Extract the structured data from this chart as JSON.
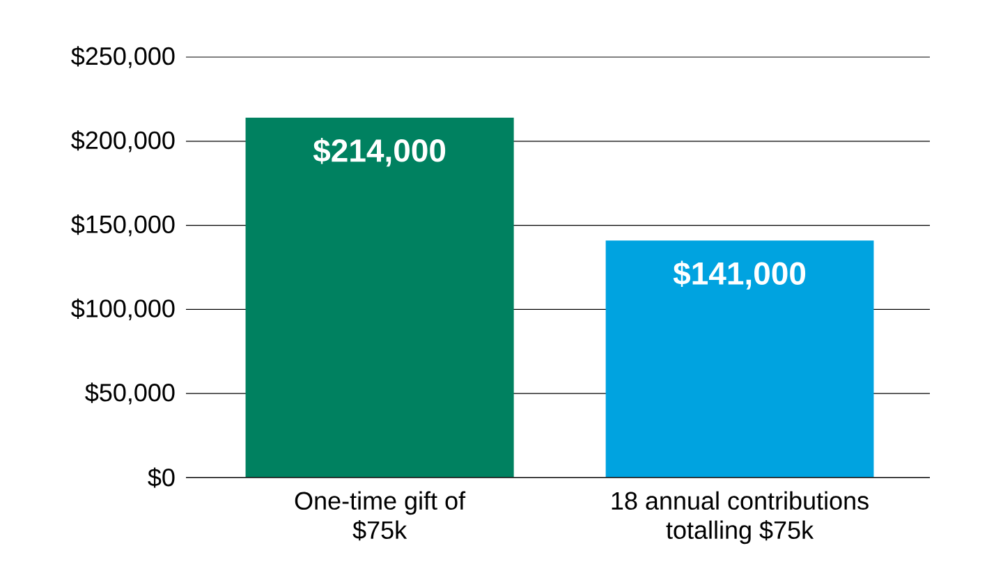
{
  "chart_data": {
    "type": "bar",
    "categories": [
      "One-time gift of $75k",
      "18 annual contributions totalling $75k"
    ],
    "values": [
      214000,
      141000
    ],
    "colors": [
      "#008160",
      "#00a3e0"
    ],
    "value_labels": [
      "$214,000",
      "$141,000"
    ],
    "ylim": [
      0,
      250000
    ],
    "yticks": [
      {
        "value": 0,
        "label": "$0"
      },
      {
        "value": 50000,
        "label": "$50,000"
      },
      {
        "value": 100000,
        "label": "$100,000"
      },
      {
        "value": 150000,
        "label": "$150,000"
      },
      {
        "value": 200000,
        "label": "$200,000"
      },
      {
        "value": 250000,
        "label": "$250,000"
      }
    ],
    "grid": "y"
  }
}
